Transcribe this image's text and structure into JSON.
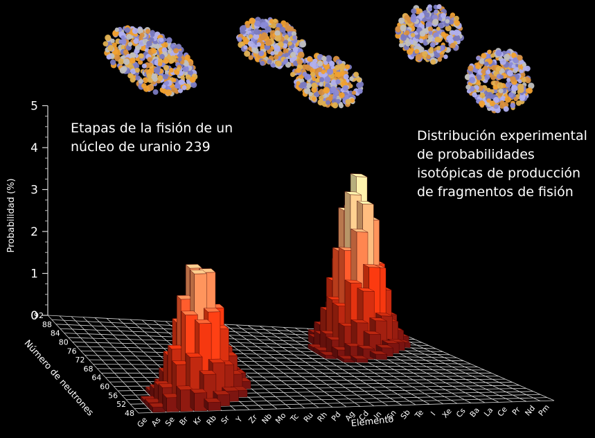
{
  "captions": {
    "left": [
      "Etapas de la fisión de un",
      "núcleo de uranio 239"
    ],
    "right": [
      "Distribución experimental",
      "de probabilidades",
      "isotópicas de producción",
      "de fragmentos de fisión"
    ]
  },
  "colors": {
    "background": "#000000",
    "grid": "#d8d8d8",
    "bar_low": "#6a0f10",
    "bar_mid": "#ff3b10",
    "bar_high": "#fff6b0"
  },
  "chart_data": {
    "type": "bar3d",
    "title": "",
    "zlabel": "Probabilidad   (%)",
    "ylabel": "Número de neutrones",
    "xlabel": "Elemento",
    "zlim": [
      0,
      5
    ],
    "z_ticks": [
      "0",
      "1",
      "2",
      "3",
      "4",
      "5"
    ],
    "neutron_ticks": [
      "48",
      "52",
      "56",
      "60",
      "64",
      "68",
      "72",
      "76",
      "80",
      "84",
      "88",
      "92"
    ],
    "elements": [
      "Ge",
      "As",
      "Se",
      "Br",
      "Kr",
      "Rb",
      "Sr",
      "Y",
      "Zr",
      "Nb",
      "Mo",
      "Tc",
      "Ru",
      "Rh",
      "Pd",
      "Ag",
      "Cd",
      "In",
      "Sn",
      "Sb",
      "Te",
      "I",
      "Xe",
      "Cs",
      "Ba",
      "La",
      "Ce",
      "Pr",
      "Nd",
      "Pm"
    ],
    "neutron_range": [
      48,
      92
    ],
    "peaks": [
      {
        "element_center": 5.8,
        "neutron_center": 56.5,
        "max": 3.2,
        "element_sigma": 1.7,
        "neutron_sigma": 3.0
      },
      {
        "element_center": 24.3,
        "neutron_center": 84.5,
        "max": 4.0,
        "element_sigma": 1.8,
        "neutron_sigma": 3.2
      }
    ]
  }
}
